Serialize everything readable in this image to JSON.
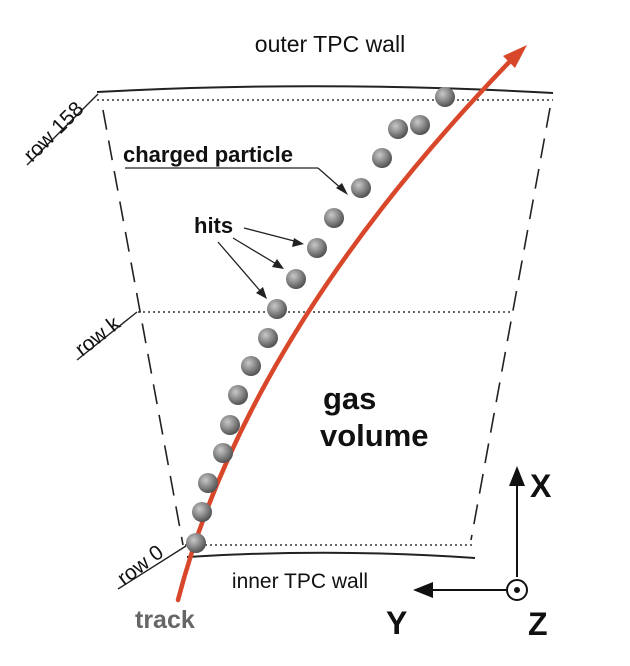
{
  "labels": {
    "outer_wall": "outer TPC wall",
    "inner_wall": "inner TPC wall",
    "charged_particle": "charged particle",
    "hits": "hits",
    "gas_line1": "gas",
    "gas_line2": "volume",
    "track": "track",
    "row_top": "row 158",
    "row_mid": "row k",
    "row_bottom": "row 0"
  },
  "axes": {
    "x": "X",
    "y": "Y",
    "z": "Z"
  },
  "colors": {
    "track": "#d9472b",
    "hit": "#808080",
    "line": "#222222",
    "track_label": "#666666"
  },
  "hit_count": 17
}
